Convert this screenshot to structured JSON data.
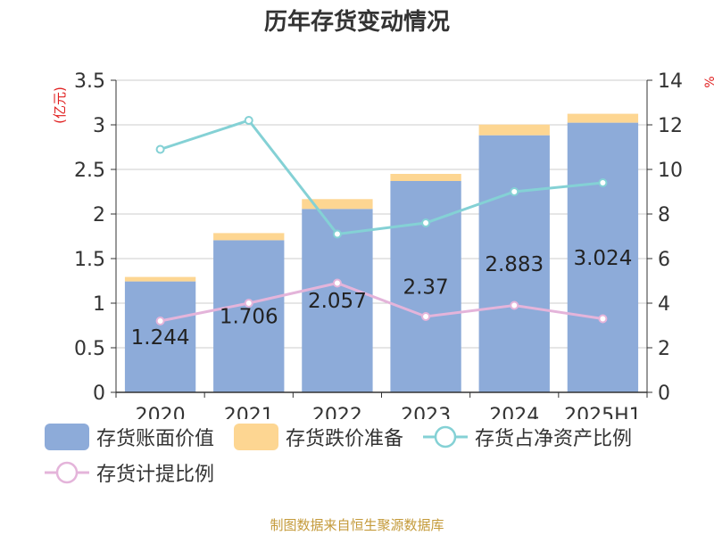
{
  "chart_data": {
    "type": "bar",
    "title": "历年存货变动情况",
    "categories": [
      "2020",
      "2021",
      "2022",
      "2023",
      "2024",
      "2025H1"
    ],
    "y_left_label": "(亿元)",
    "y_right_label": "%",
    "y_left_ticks": [
      "0",
      "0.5",
      "1",
      "1.5",
      "2",
      "2.5",
      "3",
      "3.5"
    ],
    "y_right_ticks": [
      "0",
      "2",
      "4",
      "6",
      "8",
      "10",
      "12",
      "14"
    ],
    "ylim_left": [
      0,
      3.5
    ],
    "ylim_right": [
      0,
      14
    ],
    "bar_series": [
      {
        "name": "存货账面价值",
        "color": "#8dabd9",
        "values": [
          1.244,
          1.706,
          2.057,
          2.37,
          2.883,
          3.024
        ],
        "labels": [
          "1.244",
          "1.706",
          "2.057",
          "2.37",
          "2.883",
          "3.024"
        ]
      },
      {
        "name": "存货跌价准备",
        "color": "#fdd692",
        "values": [
          0.05,
          0.08,
          0.11,
          0.08,
          0.12,
          0.1
        ]
      }
    ],
    "line_series": [
      {
        "name": "存货占净资产比例",
        "color": "#84d1d5",
        "values": [
          10.9,
          12.2,
          7.1,
          7.6,
          9.0,
          9.4
        ]
      },
      {
        "name": "存货计提比例",
        "color": "#e4b4da",
        "values": [
          3.2,
          4.0,
          4.9,
          3.4,
          3.9,
          3.3
        ]
      }
    ],
    "grid": true,
    "legend_position": "bottom"
  },
  "source": "制图数据来自恒生聚源数据库"
}
